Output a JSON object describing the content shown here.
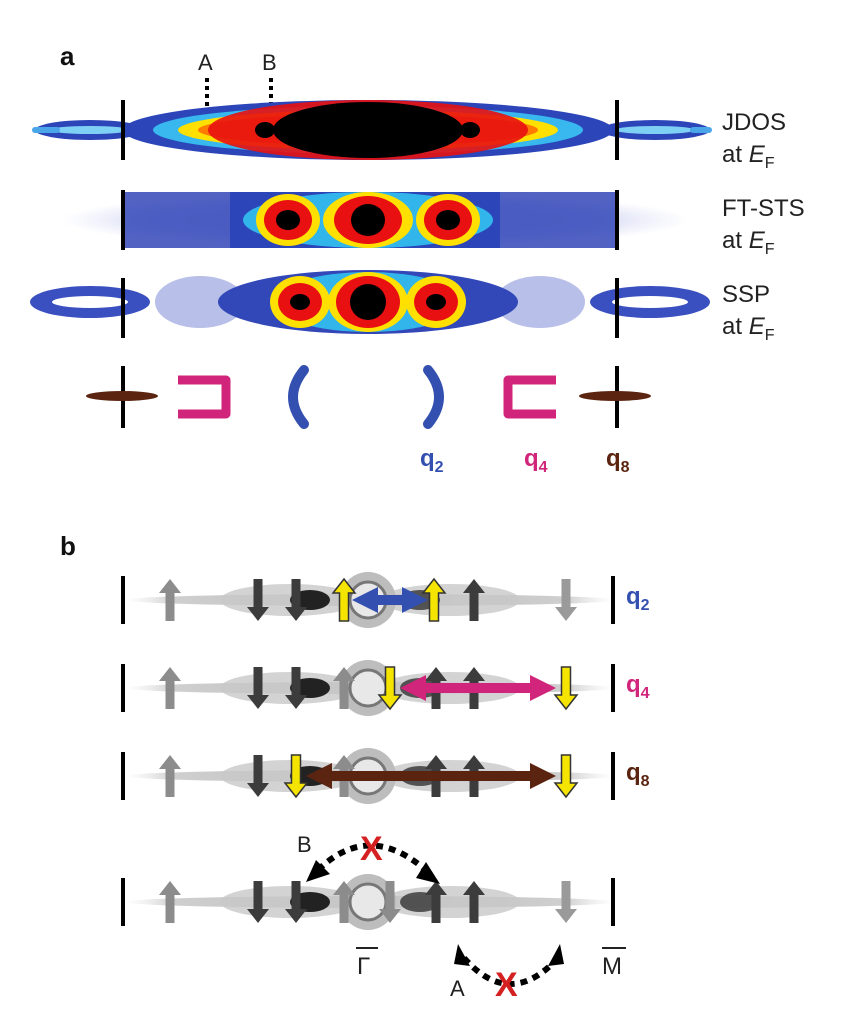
{
  "panel_a": {
    "label": "a",
    "markers": [
      "A",
      "B"
    ],
    "rows": [
      {
        "line1": "JDOS",
        "line2_prefix": "at ",
        "E": "E",
        "sub": "F"
      },
      {
        "line1": "FT-STS",
        "line2_prefix": "at ",
        "E": "E",
        "sub": "F"
      },
      {
        "line1": "SSP",
        "line2_prefix": "at ",
        "E": "E",
        "sub": "F"
      }
    ],
    "q_labels": [
      {
        "q": "q",
        "sub": "2",
        "color": "#3350b0"
      },
      {
        "q": "q",
        "sub": "4",
        "color": "#d0257a"
      },
      {
        "q": "q",
        "sub": "8",
        "color": "#5a2410"
      }
    ]
  },
  "panel_b": {
    "label": "b",
    "rows": [
      {
        "q": "q",
        "sub": "2",
        "color": "#3350b0"
      },
      {
        "q": "q",
        "sub": "4",
        "color": "#d0257a"
      },
      {
        "q": "q",
        "sub": "8",
        "color": "#5a2410"
      }
    ],
    "forbidden_labels": [
      "B",
      "A"
    ],
    "gamma_label": "Γ",
    "m_label": "M"
  },
  "colors": {
    "q2": "#3350b0",
    "q4": "#d0257a",
    "q8": "#5a2410",
    "spin_yellow": "#f5e400",
    "forbidden_x": "#d42020"
  }
}
